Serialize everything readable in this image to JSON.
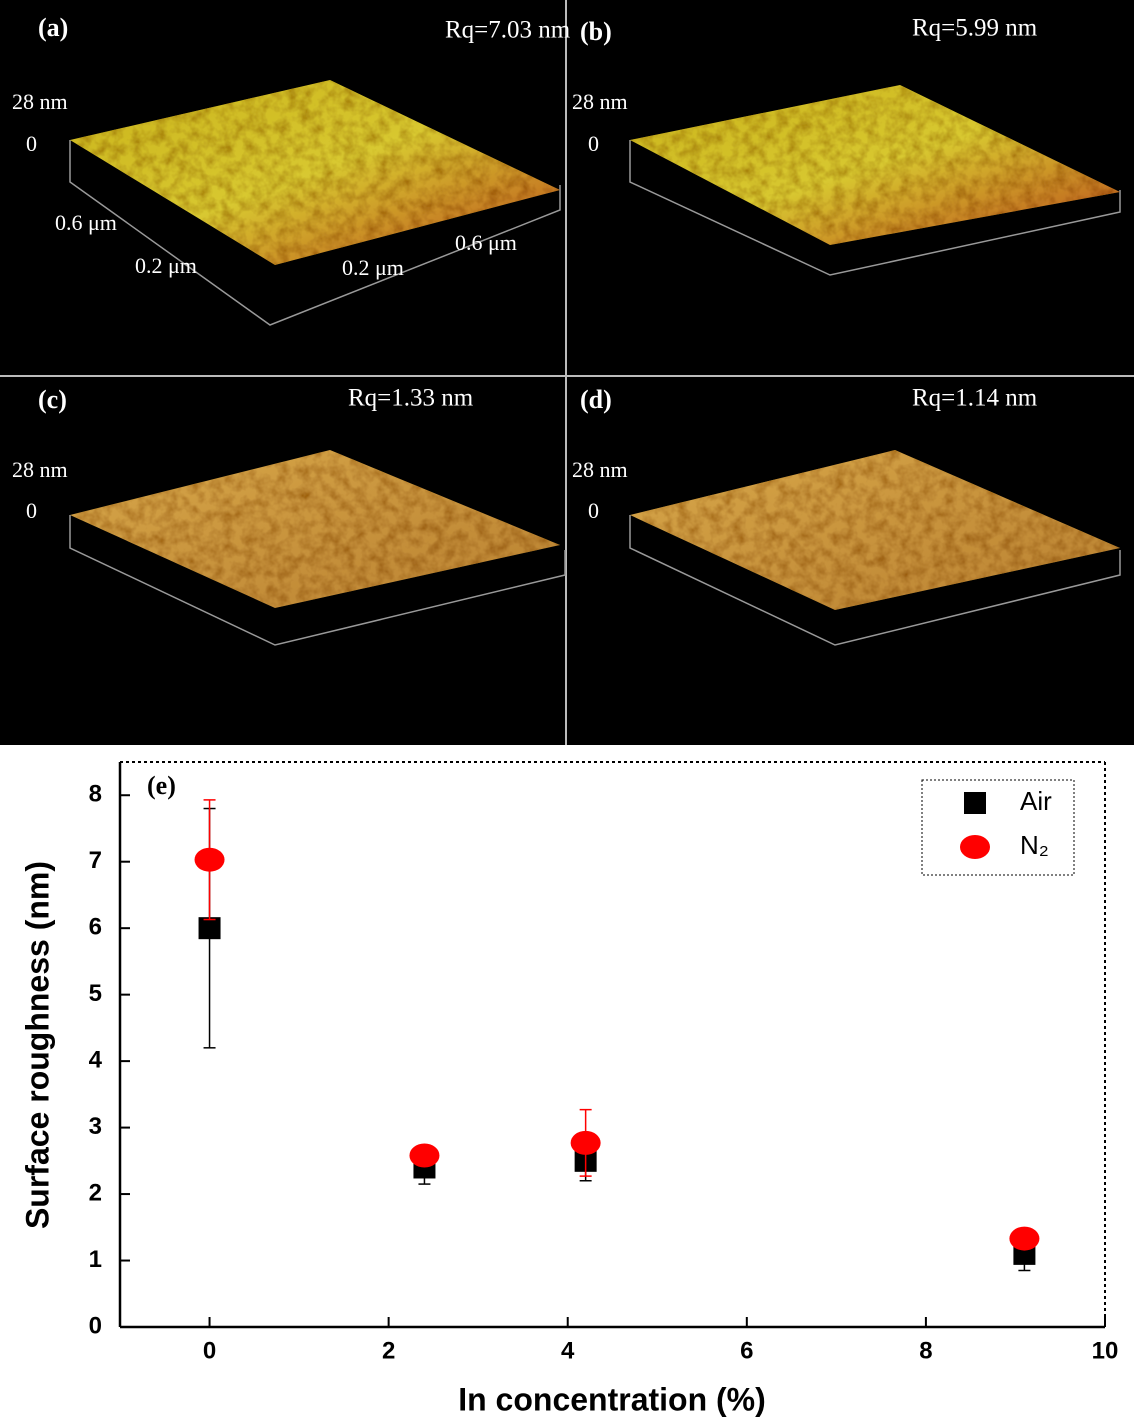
{
  "afm_panels": [
    {
      "label": "(a)",
      "roughness": "Rq=7.03 nm",
      "z_max": "28 nm",
      "z_min": "0",
      "x_labels": [
        "0.6 μm",
        "0.2 μm"
      ],
      "y_labels": [
        "0.6 μm",
        "0.2 μm"
      ]
    },
    {
      "label": "(b)",
      "roughness": "Rq=5.99 nm",
      "z_max": "28 nm",
      "z_min": "0"
    },
    {
      "label": "(c)",
      "roughness": "Rq=1.33 nm",
      "z_max": "28 nm",
      "z_min": "0"
    },
    {
      "label": "(d)",
      "roughness": "Rq=1.14 nm",
      "z_max": "28 nm",
      "z_min": "0"
    }
  ],
  "chart_data": {
    "type": "scatter",
    "panel_label": "(e)",
    "x_label": "In concentration (%)",
    "y_label": "Surface roughness (nm)",
    "xlim": [
      -1,
      10
    ],
    "xticks": [
      0,
      2,
      4,
      6,
      8,
      10
    ],
    "ylim": [
      0,
      8.5
    ],
    "yticks": [
      0,
      1,
      2,
      3,
      4,
      5,
      6,
      7,
      8
    ],
    "legend": "upper right",
    "series": [
      {
        "name": "Air",
        "color": "#000000",
        "marker": "square",
        "x": [
          0,
          2.4,
          4.2,
          9.1
        ],
        "values": [
          6.0,
          2.4,
          2.5,
          1.1
        ],
        "errors": [
          1.8,
          0.25,
          0.3,
          0.25
        ]
      },
      {
        "name": "N₂",
        "color": "#ff0000",
        "marker": "circle",
        "x": [
          0,
          2.4,
          4.2,
          9.1
        ],
        "values": [
          7.03,
          2.58,
          2.77,
          1.33
        ],
        "errors": [
          0.9,
          0.15,
          0.5,
          0.1
        ]
      }
    ]
  }
}
